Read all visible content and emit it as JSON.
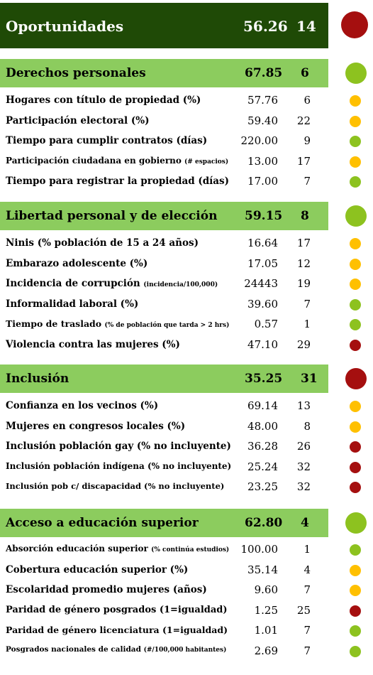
{
  "colors": {
    "green": "#8dc21f",
    "yellow": "#ffc000",
    "red": "#a50f0f",
    "dark_header": "#1f4a06",
    "light_header": "#8ccc5e"
  },
  "top": {
    "label": "Oportunidades",
    "score": "56.26",
    "rank": "14",
    "status": "red"
  },
  "sections": [
    {
      "label": "Derechos personales",
      "score": "67.85",
      "rank": "6",
      "status": "green",
      "rows": [
        {
          "label": "Hogares con título de propiedad (%)",
          "sub": "",
          "value": "57.76",
          "rank": "6",
          "status": "yellow"
        },
        {
          "label": "Participación electoral (%)",
          "sub": "",
          "value": "59.40",
          "rank": "22",
          "status": "yellow"
        },
        {
          "label": "Tiempo para cumplir contratos (días)",
          "sub": "",
          "value": "220.00",
          "rank": "9",
          "status": "green"
        },
        {
          "label": "Participación ciudadana en gobierno ",
          "sub": "(# espacios)",
          "value": "13.00",
          "rank": "17",
          "status": "yellow"
        },
        {
          "label": "Tiempo para registrar la propiedad (días)",
          "sub": "",
          "value": "17.00",
          "rank": "7",
          "status": "green"
        }
      ]
    },
    {
      "label": "Libertad personal y de elección",
      "score": "59.15",
      "rank": "8",
      "status": "green",
      "rows": [
        {
          "label": "Ninis (% población de 15 a 24 años)",
          "sub": "",
          "value": "16.64",
          "rank": "17",
          "status": "yellow"
        },
        {
          "label": "Embarazo adolescente (%)",
          "sub": "",
          "value": "17.05",
          "rank": "12",
          "status": "yellow"
        },
        {
          "label": "Incidencia de corrupción ",
          "sub": "(incidencia/100,000)",
          "value": "24443",
          "rank": "19",
          "status": "yellow"
        },
        {
          "label": "Informalidad laboral (%)",
          "sub": "",
          "value": "39.60",
          "rank": "7",
          "status": "green"
        },
        {
          "label": "Tiempo de traslado ",
          "sub": "(% de población que tarda > 2 hrs)",
          "value": "0.57",
          "rank": "1",
          "status": "green"
        },
        {
          "label": "Violencia contra las mujeres (%)",
          "sub": "",
          "value": "47.10",
          "rank": "29",
          "status": "red"
        }
      ]
    },
    {
      "label": "Inclusión",
      "score": "35.25",
      "rank": "31",
      "status": "red",
      "rows": [
        {
          "label": "Confianza en los vecinos (%)",
          "sub": "",
          "value": "69.14",
          "rank": "13",
          "status": "yellow"
        },
        {
          "label": "Mujeres en congresos locales (%)",
          "sub": "",
          "value": "48.00",
          "rank": "8",
          "status": "yellow"
        },
        {
          "label": "Inclusión población gay (% no incluyente)",
          "sub": "",
          "value": "36.28",
          "rank": "26",
          "status": "red"
        },
        {
          "label": "Inclusión población indígena (% no incluyente)",
          "sub": "",
          "value": "25.24",
          "rank": "32",
          "status": "red"
        },
        {
          "label": "Inclusión pob c/ discapacidad (% no incluyente)",
          "sub": "",
          "value": "23.25",
          "rank": "32",
          "status": "red"
        }
      ]
    },
    {
      "label": "Acceso a educación superior",
      "score": "62.80",
      "rank": "4",
      "status": "green",
      "rows": [
        {
          "label": "Absorción educación superior ",
          "sub": "(% continúa estudios)",
          "value": "100.00",
          "rank": "1",
          "status": "green"
        },
        {
          "label": "Cobertura educación superior (%)",
          "sub": "",
          "value": "35.14",
          "rank": "4",
          "status": "yellow"
        },
        {
          "label": "Escolaridad promedio mujeres (años)",
          "sub": "",
          "value": "9.60",
          "rank": "7",
          "status": "yellow"
        },
        {
          "label": "Paridad de género  posgrados (1=igualdad)",
          "sub": "",
          "value": "1.25",
          "rank": "25",
          "status": "red"
        },
        {
          "label": "Paridad de género licenciatura (1=igualdad)",
          "sub": "",
          "value": "1.01",
          "rank": "7",
          "status": "green"
        },
        {
          "label": "Posgrados nacionales de calidad ",
          "sub": "(#/100,000 habitantes)",
          "value": "2.69",
          "rank": "7",
          "status": "green"
        }
      ]
    }
  ]
}
